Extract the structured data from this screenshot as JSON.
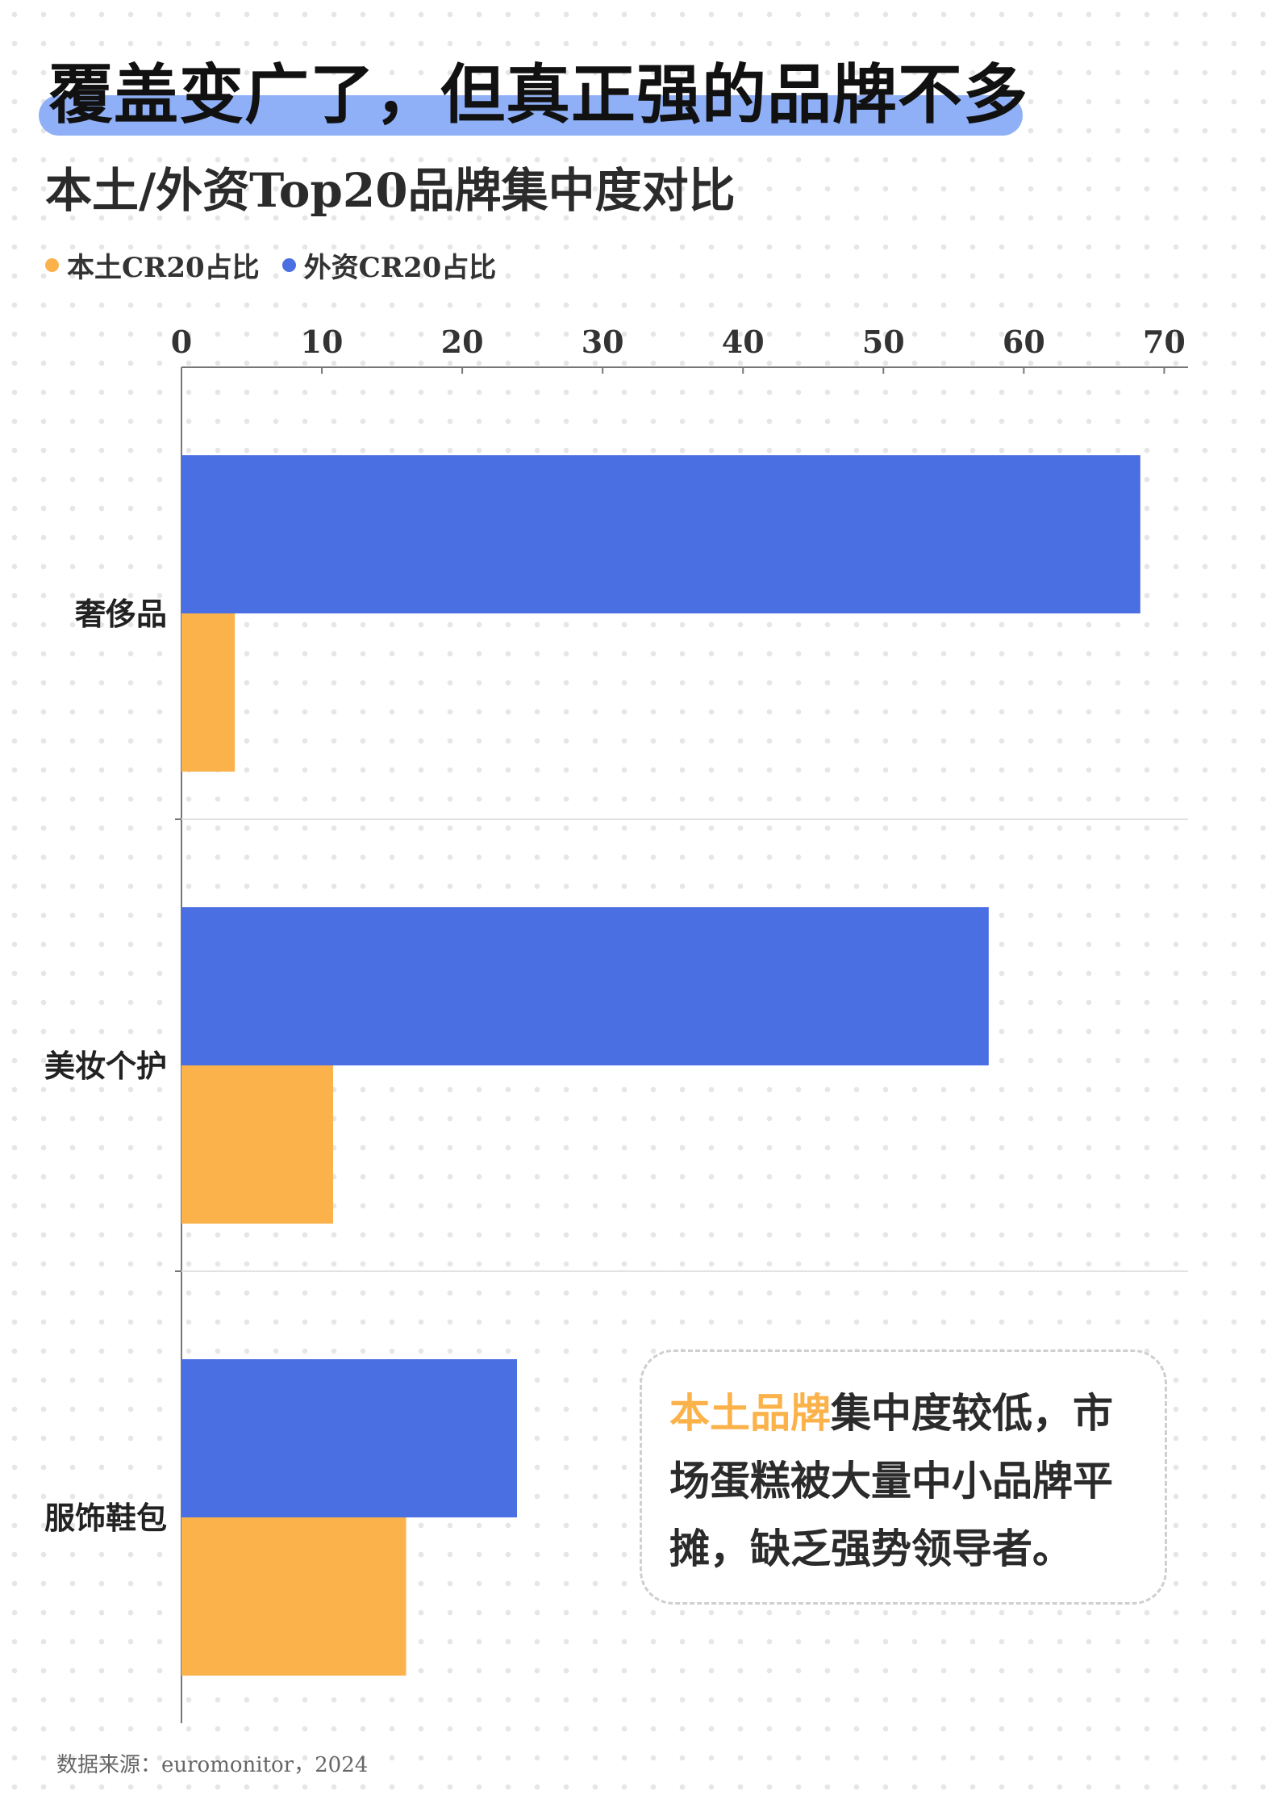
{
  "headline": "覆盖变广了，但真正强的品牌不多",
  "subtitle": "本土/外资Top20品牌集中度对比",
  "legend": [
    {
      "label": "本土CR20占比",
      "color": "#fbb24a"
    },
    {
      "label": "外资CR20占比",
      "color": "#4a6fe3"
    }
  ],
  "colors": {
    "domestic": "#fbb24a",
    "foreign": "#4a6fe3",
    "headline_bar": "#8fb0f7"
  },
  "chart_data": {
    "type": "bar",
    "orientation": "horizontal",
    "categories": [
      "奢侈品",
      "美妆个护",
      "服饰鞋包"
    ],
    "series": [
      {
        "name": "外资CR20占比",
        "color": "#4a6fe3",
        "values": [
          68.3,
          57.5,
          23.9
        ]
      },
      {
        "name": "本土CR20占比",
        "color": "#fbb24a",
        "values": [
          3.8,
          10.8,
          16.0
        ]
      }
    ],
    "x_ticks": [
      0,
      10,
      20,
      30,
      40,
      50,
      60,
      70
    ],
    "xlim": [
      0,
      71.7
    ],
    "axis_position": "top",
    "grid": false
  },
  "callout": {
    "highlight": "本土品牌",
    "text": "集中度较低，市场蛋糕被大量中小品牌平摊，缺乏强势领导者。"
  },
  "source": "数据来源：euromonitor，2024"
}
